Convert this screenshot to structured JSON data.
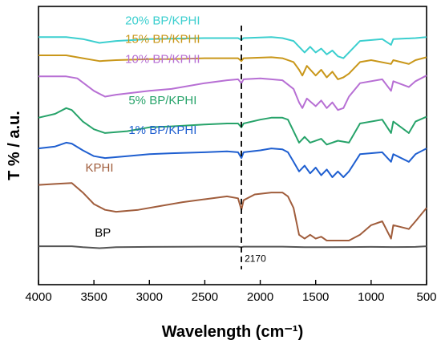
{
  "chart_data": {
    "type": "line",
    "title": "",
    "xlabel": "Wavelength (cm⁻¹)",
    "ylabel": "T % / a.u.",
    "xlim": [
      4000,
      500
    ],
    "x_reversed": true,
    "xticks": [
      4000,
      3500,
      3000,
      2500,
      2000,
      1500,
      1000,
      500
    ],
    "grid": false,
    "legend": "inline labels",
    "annotation": {
      "x": 2170,
      "label": "2170",
      "style": "dashed vertical line"
    },
    "series": [
      {
        "name": "20% BP/KPHI",
        "color": "#3ccfcf",
        "points": [
          [
            4000,
            94
          ],
          [
            3750,
            94
          ],
          [
            3600,
            93
          ],
          [
            3450,
            91
          ],
          [
            3300,
            92
          ],
          [
            3000,
            93
          ],
          [
            2800,
            93.2
          ],
          [
            2500,
            93.5
          ],
          [
            2200,
            93.5
          ],
          [
            2170,
            92.5
          ],
          [
            2150,
            93.5
          ],
          [
            1900,
            94
          ],
          [
            1800,
            93.5
          ],
          [
            1700,
            92
          ],
          [
            1650,
            89
          ],
          [
            1600,
            86
          ],
          [
            1550,
            89
          ],
          [
            1500,
            86
          ],
          [
            1450,
            88
          ],
          [
            1400,
            85
          ],
          [
            1350,
            87
          ],
          [
            1300,
            84
          ],
          [
            1250,
            83
          ],
          [
            1200,
            86
          ],
          [
            1100,
            92
          ],
          [
            900,
            93
          ],
          [
            820,
            90
          ],
          [
            800,
            93
          ],
          [
            600,
            93.5
          ],
          [
            500,
            94
          ]
        ]
      },
      {
        "name": "15% BP/KPHI",
        "color": "#c9971a",
        "points": [
          [
            4000,
            84.5
          ],
          [
            3750,
            84.5
          ],
          [
            3600,
            83
          ],
          [
            3450,
            81.5
          ],
          [
            3300,
            82
          ],
          [
            3000,
            82.5
          ],
          [
            2800,
            82.5
          ],
          [
            2500,
            83
          ],
          [
            2200,
            83
          ],
          [
            2170,
            81.5
          ],
          [
            2150,
            83
          ],
          [
            1900,
            83.5
          ],
          [
            1800,
            83
          ],
          [
            1700,
            81
          ],
          [
            1650,
            77
          ],
          [
            1620,
            74
          ],
          [
            1580,
            79
          ],
          [
            1500,
            74
          ],
          [
            1450,
            77
          ],
          [
            1400,
            73
          ],
          [
            1350,
            76
          ],
          [
            1300,
            72
          ],
          [
            1250,
            73
          ],
          [
            1200,
            75
          ],
          [
            1100,
            81
          ],
          [
            1000,
            82
          ],
          [
            820,
            80
          ],
          [
            800,
            82
          ],
          [
            660,
            80
          ],
          [
            600,
            82
          ],
          [
            500,
            83.5
          ]
        ]
      },
      {
        "name": "10% BP/KPHI",
        "color": "#b76fd4",
        "points": [
          [
            4000,
            73.5
          ],
          [
            3750,
            73.5
          ],
          [
            3650,
            72.5
          ],
          [
            3500,
            66
          ],
          [
            3400,
            63
          ],
          [
            3300,
            64
          ],
          [
            3000,
            66
          ],
          [
            2800,
            67
          ],
          [
            2500,
            70
          ],
          [
            2300,
            71.5
          ],
          [
            2200,
            72
          ],
          [
            2170,
            70
          ],
          [
            2150,
            72
          ],
          [
            2000,
            72.5
          ],
          [
            1900,
            72
          ],
          [
            1800,
            71.5
          ],
          [
            1700,
            67
          ],
          [
            1650,
            60
          ],
          [
            1620,
            57
          ],
          [
            1580,
            62
          ],
          [
            1500,
            58
          ],
          [
            1450,
            61
          ],
          [
            1400,
            57
          ],
          [
            1350,
            60
          ],
          [
            1300,
            56
          ],
          [
            1250,
            57
          ],
          [
            1200,
            63
          ],
          [
            1100,
            70
          ],
          [
            900,
            72
          ],
          [
            820,
            66
          ],
          [
            800,
            71
          ],
          [
            660,
            68
          ],
          [
            600,
            71
          ],
          [
            500,
            74
          ]
        ]
      },
      {
        "name": "5% BP/KPHI",
        "color": "#27a36a",
        "points": [
          [
            4000,
            52
          ],
          [
            3850,
            54
          ],
          [
            3750,
            57
          ],
          [
            3700,
            56
          ],
          [
            3600,
            50
          ],
          [
            3500,
            46
          ],
          [
            3400,
            44
          ],
          [
            3200,
            45
          ],
          [
            3000,
            47
          ],
          [
            2800,
            47.5
          ],
          [
            2500,
            48.5
          ],
          [
            2300,
            49
          ],
          [
            2200,
            49
          ],
          [
            2170,
            47
          ],
          [
            2150,
            49
          ],
          [
            2000,
            51
          ],
          [
            1900,
            52
          ],
          [
            1800,
            52
          ],
          [
            1750,
            51
          ],
          [
            1700,
            45
          ],
          [
            1650,
            39
          ],
          [
            1600,
            42
          ],
          [
            1550,
            39
          ],
          [
            1450,
            41
          ],
          [
            1400,
            38
          ],
          [
            1300,
            40
          ],
          [
            1200,
            39
          ],
          [
            1100,
            49
          ],
          [
            900,
            51
          ],
          [
            820,
            44
          ],
          [
            800,
            50
          ],
          [
            660,
            44
          ],
          [
            600,
            50
          ],
          [
            500,
            52.5
          ]
        ]
      },
      {
        "name": "1% BP/KPHI",
        "color": "#1f5fd0",
        "points": [
          [
            4000,
            36
          ],
          [
            3850,
            37
          ],
          [
            3750,
            39
          ],
          [
            3700,
            38.5
          ],
          [
            3600,
            35
          ],
          [
            3500,
            32
          ],
          [
            3400,
            31
          ],
          [
            3200,
            32
          ],
          [
            3000,
            33
          ],
          [
            2800,
            33.5
          ],
          [
            2500,
            34
          ],
          [
            2300,
            34.5
          ],
          [
            2200,
            34
          ],
          [
            2170,
            31
          ],
          [
            2150,
            34
          ],
          [
            2000,
            35
          ],
          [
            1900,
            36
          ],
          [
            1800,
            35.5
          ],
          [
            1750,
            34
          ],
          [
            1700,
            29
          ],
          [
            1650,
            24
          ],
          [
            1600,
            27
          ],
          [
            1550,
            23
          ],
          [
            1500,
            26
          ],
          [
            1450,
            22
          ],
          [
            1400,
            25
          ],
          [
            1350,
            21
          ],
          [
            1300,
            24
          ],
          [
            1250,
            21
          ],
          [
            1200,
            24
          ],
          [
            1100,
            33
          ],
          [
            900,
            34
          ],
          [
            820,
            29
          ],
          [
            800,
            33
          ],
          [
            660,
            29
          ],
          [
            600,
            33
          ],
          [
            500,
            36
          ]
        ]
      },
      {
        "name": "KPHI",
        "color": "#a05d3c",
        "points": [
          [
            4000,
            17
          ],
          [
            3850,
            17.5
          ],
          [
            3700,
            18
          ],
          [
            3600,
            13
          ],
          [
            3500,
            7
          ],
          [
            3400,
            4
          ],
          [
            3300,
            3
          ],
          [
            3100,
            4
          ],
          [
            2900,
            6
          ],
          [
            2700,
            8
          ],
          [
            2500,
            9.5
          ],
          [
            2300,
            11
          ],
          [
            2200,
            10
          ],
          [
            2170,
            4
          ],
          [
            2150,
            9
          ],
          [
            2050,
            12
          ],
          [
            1900,
            13
          ],
          [
            1800,
            13
          ],
          [
            1750,
            11
          ],
          [
            1700,
            5
          ],
          [
            1650,
            -9
          ],
          [
            1600,
            -11
          ],
          [
            1550,
            -9
          ],
          [
            1500,
            -11
          ],
          [
            1450,
            -10
          ],
          [
            1400,
            -12
          ],
          [
            1300,
            -12
          ],
          [
            1200,
            -12
          ],
          [
            1100,
            -9
          ],
          [
            1000,
            -4
          ],
          [
            900,
            -2
          ],
          [
            820,
            -11
          ],
          [
            800,
            -4
          ],
          [
            660,
            -6
          ],
          [
            600,
            -2
          ],
          [
            500,
            5
          ]
        ]
      },
      {
        "name": "BP",
        "color": "#555555",
        "points": [
          [
            4000,
            -15
          ],
          [
            3700,
            -15
          ],
          [
            3600,
            -15.5
          ],
          [
            3450,
            -16
          ],
          [
            3300,
            -15.5
          ],
          [
            3000,
            -15.3
          ],
          [
            2500,
            -15.2
          ],
          [
            2200,
            -15.2
          ],
          [
            2170,
            -15.5
          ],
          [
            2150,
            -15.2
          ],
          [
            1800,
            -15.2
          ],
          [
            1600,
            -15.5
          ],
          [
            1400,
            -15.5
          ],
          [
            1200,
            -15.4
          ],
          [
            1000,
            -15.3
          ],
          [
            800,
            -15.4
          ],
          [
            600,
            -15.3
          ],
          [
            500,
            -15
          ]
        ]
      }
    ]
  }
}
